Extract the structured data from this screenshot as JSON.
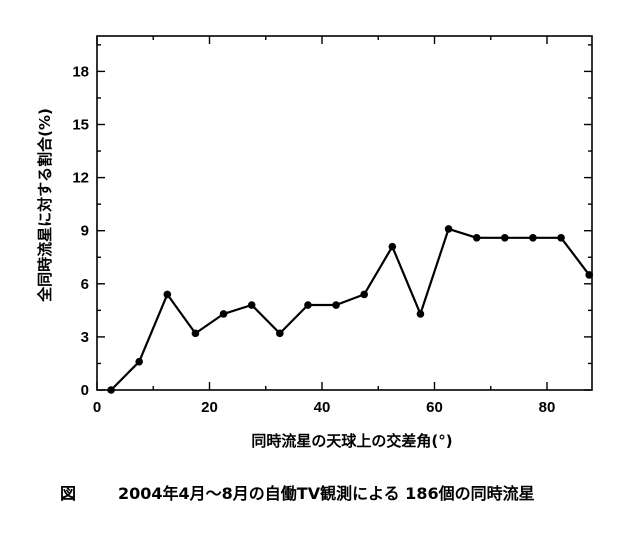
{
  "chart_data": {
    "type": "line",
    "xlabel": "同時流星の天球上の交差角(°)",
    "ylabel": "全同時流星に対する割合(%)",
    "xlim": [
      0,
      88
    ],
    "ylim": [
      0,
      20
    ],
    "xticks": [
      0,
      20,
      40,
      60,
      80
    ],
    "yticks": [
      0,
      3,
      6,
      9,
      12,
      15,
      18
    ],
    "grid": false,
    "series": [
      {
        "x": [
          2.5,
          7.5,
          12.5,
          17.5,
          22.5,
          27.5,
          32.5,
          37.5,
          42.5,
          47.5,
          52.5,
          57.5,
          62.5,
          67.5,
          72.5,
          77.5,
          82.5,
          87.5
        ],
        "y": [
          0.0,
          1.6,
          5.4,
          3.2,
          4.3,
          4.8,
          3.2,
          4.8,
          4.8,
          5.4,
          8.1,
          4.3,
          9.1,
          8.6,
          8.6,
          8.6,
          8.6,
          6.5
        ]
      }
    ]
  },
  "caption": {
    "prefix": "図",
    "text": "2004年4月～8月の自働TV観測による 186個の同時流星"
  }
}
